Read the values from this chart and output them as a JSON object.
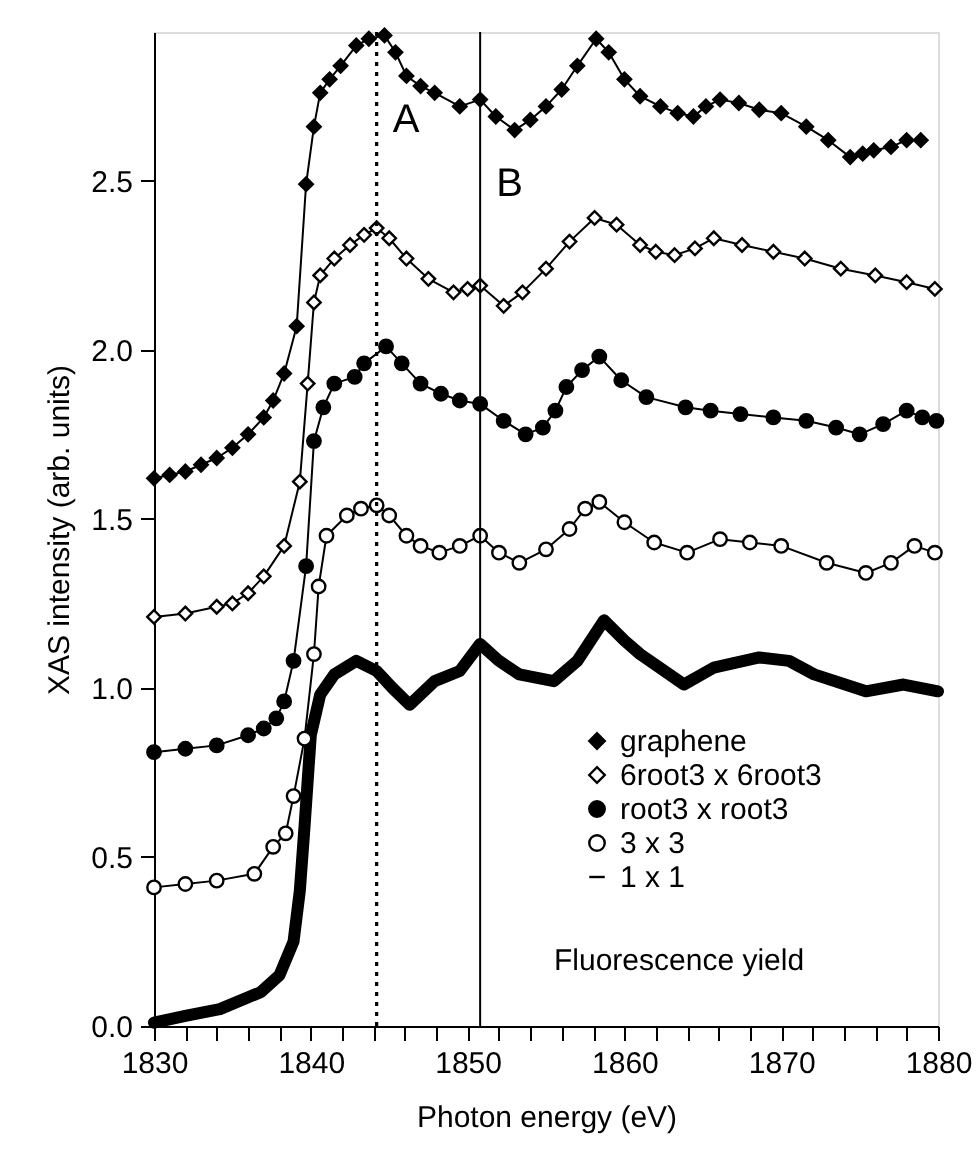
{
  "chart_data": {
    "type": "line",
    "xlabel": "Photon energy (eV)",
    "ylabel": "XAS intensity (arb. units)",
    "xlim": [
      1830,
      1880
    ],
    "xticks": [
      1830,
      {
        "value": 1832,
        "label": null
      },
      {
        "value": 1834,
        "label": null
      },
      {
        "value": 1836,
        "label": null
      },
      {
        "value": 1838,
        "label": null
      },
      1840,
      {
        "value": 1842,
        "label": null
      },
      {
        "value": 1844,
        "label": null
      },
      {
        "value": 1846,
        "label": null
      },
      {
        "value": 1848,
        "label": null
      },
      1850,
      {
        "value": 1852,
        "label": null
      },
      {
        "value": 1854,
        "label": null
      },
      {
        "value": 1856,
        "label": null
      },
      {
        "value": 1858,
        "label": null
      },
      1860,
      {
        "value": 1862,
        "label": null
      },
      {
        "value": 1864,
        "label": null
      },
      {
        "value": 1866,
        "label": null
      },
      {
        "value": 1868,
        "label": null
      },
      1870,
      {
        "value": 1872,
        "label": null
      },
      {
        "value": 1874,
        "label": null
      },
      {
        "value": 1876,
        "label": null
      },
      {
        "value": 1878,
        "label": null
      },
      1880
    ],
    "ylim": [
      0,
      2.94
    ],
    "yticks": [
      {
        "value": 0,
        "label": "0.0"
      },
      0.5,
      {
        "value": 1,
        "label": "1.0"
      },
      1.5,
      {
        "value": 2,
        "label": "2.0"
      },
      2.5
    ],
    "grid": false,
    "legend": "bottom right",
    "line_style": "solid",
    "ref_lines": [
      {
        "axis": "x",
        "value": 1844.2,
        "label": "A",
        "line_style": "dotted",
        "color": "#000000"
      },
      {
        "axis": "x",
        "value": 1850.8,
        "label": "B",
        "line_style": "solid",
        "color": "#000000"
      }
    ],
    "annotations": [
      "Fluorescence yield"
    ],
    "series": [
      {
        "name": "graphene",
        "color": "#000000",
        "marker": "diamond",
        "x": [
          1830,
          1831,
          1832,
          1833,
          1834,
          1835,
          1836,
          1837,
          1837.6,
          1838.3,
          1839.1,
          1839.7,
          1840.2,
          1840.6,
          1841.2,
          1841.9,
          1842.9,
          1843.7,
          1844.7,
          1845.4,
          1846.1,
          1847,
          1847.9,
          1849.5,
          1850.8,
          1851.8,
          1853,
          1854,
          1855,
          1856,
          1857,
          1858.2,
          1859,
          1860,
          1861,
          1862.3,
          1863.4,
          1864.4,
          1865.2,
          1866.1,
          1867.3,
          1868.6,
          1870,
          1871.6,
          1873,
          1874.4,
          1875.2,
          1875.9,
          1877,
          1878,
          1878.9
        ],
        "values": [
          1.62,
          1.63,
          1.64,
          1.66,
          1.68,
          1.71,
          1.75,
          1.8,
          1.85,
          1.93,
          2.07,
          2.49,
          2.66,
          2.76,
          2.8,
          2.84,
          2.9,
          2.92,
          2.93,
          2.88,
          2.81,
          2.78,
          2.76,
          2.72,
          2.74,
          2.69,
          2.65,
          2.68,
          2.72,
          2.77,
          2.84,
          2.92,
          2.88,
          2.8,
          2.75,
          2.72,
          2.7,
          2.69,
          2.72,
          2.74,
          2.73,
          2.71,
          2.7,
          2.66,
          2.62,
          2.57,
          2.58,
          2.59,
          2.6,
          2.62,
          2.62
        ]
      },
      {
        "name": "6root3 x 6root3",
        "color": "#ffffff",
        "marker": "diamond",
        "x": [
          1830,
          1832,
          1834,
          1835,
          1836,
          1837,
          1838.3,
          1839.3,
          1839.8,
          1840.2,
          1840.6,
          1841.5,
          1842.5,
          1843.4,
          1844.2,
          1845,
          1846.1,
          1847.5,
          1849.1,
          1850,
          1850.8,
          1852.3,
          1853.5,
          1855,
          1856.5,
          1858.1,
          1859.5,
          1861,
          1862,
          1863.2,
          1864.5,
          1865.7,
          1867.5,
          1869.5,
          1871.5,
          1873.8,
          1876,
          1878,
          1879.8
        ],
        "values": [
          1.21,
          1.22,
          1.24,
          1.25,
          1.28,
          1.33,
          1.42,
          1.61,
          1.9,
          2.14,
          2.22,
          2.27,
          2.31,
          2.34,
          2.36,
          2.33,
          2.27,
          2.21,
          2.17,
          2.18,
          2.19,
          2.13,
          2.17,
          2.24,
          2.32,
          2.39,
          2.37,
          2.31,
          2.29,
          2.28,
          2.3,
          2.33,
          2.31,
          2.29,
          2.27,
          2.24,
          2.22,
          2.2,
          2.18
        ]
      },
      {
        "name": "root3 x root3",
        "color": "#000000",
        "marker": "circle",
        "x": [
          1830,
          1832,
          1834,
          1836,
          1837,
          1837.8,
          1838.3,
          1838.9,
          1839.7,
          1840.2,
          1840.8,
          1841.5,
          1842.8,
          1843.4,
          1844.8,
          1845.8,
          1847,
          1848.3,
          1849.5,
          1850.8,
          1852.3,
          1853.7,
          1854.8,
          1855.6,
          1856.3,
          1857.3,
          1858.4,
          1859.8,
          1861.4,
          1863.9,
          1865.5,
          1867.4,
          1869.5,
          1871.6,
          1873.5,
          1875,
          1876.5,
          1878,
          1879,
          1879.9
        ],
        "values": [
          0.81,
          0.82,
          0.83,
          0.86,
          0.88,
          0.91,
          0.96,
          1.08,
          1.36,
          1.73,
          1.83,
          1.9,
          1.92,
          1.96,
          2.01,
          1.96,
          1.9,
          1.87,
          1.85,
          1.84,
          1.79,
          1.75,
          1.77,
          1.82,
          1.89,
          1.94,
          1.98,
          1.91,
          1.86,
          1.83,
          1.82,
          1.81,
          1.8,
          1.79,
          1.77,
          1.75,
          1.78,
          1.82,
          1.8,
          1.79
        ]
      },
      {
        "name": "3 x 3",
        "color": "#ffffff",
        "marker": "circle",
        "x": [
          1830,
          1832,
          1834,
          1836.4,
          1837.6,
          1838.4,
          1838.9,
          1839.6,
          1840.2,
          1840.5,
          1841,
          1842.3,
          1843.2,
          1844.2,
          1845,
          1846.1,
          1847,
          1848.2,
          1849.5,
          1850.8,
          1852,
          1853.3,
          1855,
          1856.5,
          1857.5,
          1858.4,
          1860,
          1861.9,
          1864,
          1866.1,
          1868,
          1870,
          1872.9,
          1875.4,
          1877,
          1878.5,
          1879.8
        ],
        "values": [
          0.41,
          0.42,
          0.43,
          0.45,
          0.53,
          0.57,
          0.68,
          0.85,
          1.1,
          1.3,
          1.45,
          1.51,
          1.53,
          1.54,
          1.51,
          1.45,
          1.42,
          1.4,
          1.42,
          1.45,
          1.4,
          1.37,
          1.41,
          1.47,
          1.53,
          1.55,
          1.49,
          1.43,
          1.4,
          1.44,
          1.43,
          1.42,
          1.37,
          1.34,
          1.37,
          1.42,
          1.4
        ]
      },
      {
        "name": "1 x 1",
        "color": "#000000",
        "marker": "none",
        "x": [
          1830,
          1832,
          1834.2,
          1836.8,
          1838,
          1838.9,
          1839.3,
          1839.6,
          1840,
          1840.6,
          1841.5,
          1842.9,
          1844.2,
          1845.2,
          1846.3,
          1847.9,
          1849.5,
          1850.8,
          1852,
          1853.3,
          1855.5,
          1857,
          1858.7,
          1860,
          1861,
          1863.8,
          1865.7,
          1868.6,
          1870.5,
          1872.1,
          1875.4,
          1877.8,
          1880
        ],
        "values": [
          0.01,
          0.03,
          0.05,
          0.1,
          0.15,
          0.25,
          0.4,
          0.59,
          0.86,
          0.98,
          1.04,
          1.08,
          1.05,
          1.0,
          0.95,
          1.02,
          1.05,
          1.13,
          1.08,
          1.04,
          1.02,
          1.08,
          1.2,
          1.14,
          1.1,
          1.01,
          1.06,
          1.09,
          1.08,
          1.04,
          0.99,
          1.01,
          0.99
        ]
      }
    ]
  }
}
